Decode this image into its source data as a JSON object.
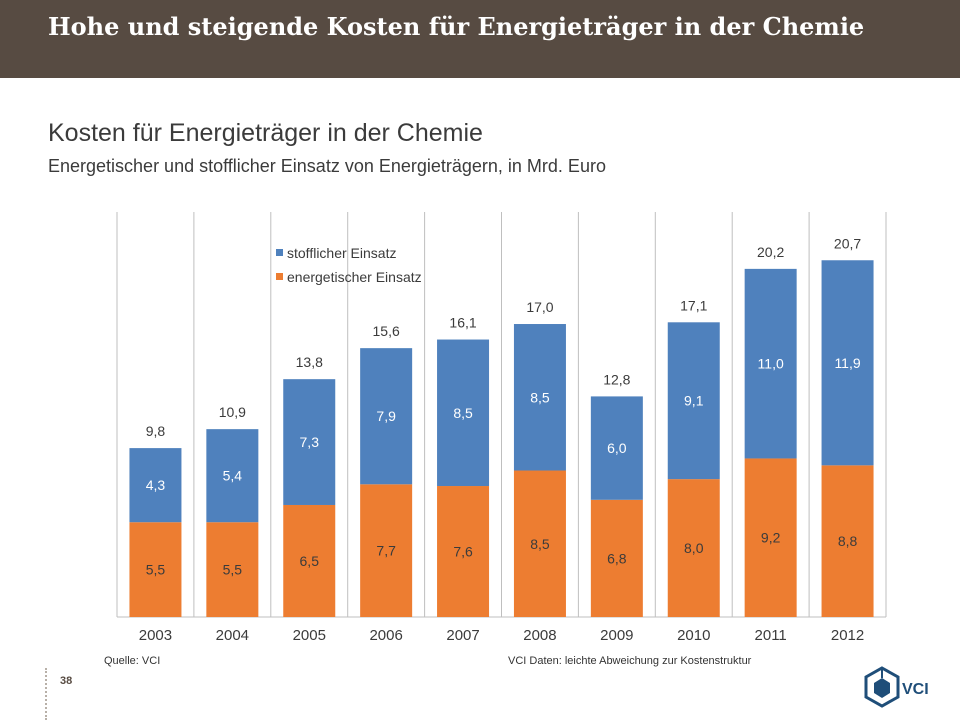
{
  "header": {
    "title": "Hohe und steigende Kosten für Energieträger in der Chemie"
  },
  "chart_data": {
    "type": "bar",
    "stacked": true,
    "title": "Kosten für Energieträger in der Chemie",
    "subtitle": "Energetischer und stofflicher Einsatz von Energieträgern, in Mrd. Euro",
    "categories": [
      "2003",
      "2004",
      "2005",
      "2006",
      "2007",
      "2008",
      "2009",
      "2010",
      "2011",
      "2012"
    ],
    "series": [
      {
        "name": "energetischer Einsatz",
        "color": "#ed7d31",
        "values": [
          5.5,
          5.5,
          6.5,
          7.7,
          7.6,
          8.5,
          6.8,
          8.0,
          9.2,
          8.8
        ],
        "labels": [
          "5,5",
          "5,5",
          "6,5",
          "7,7",
          "7,6",
          "8,5",
          "6,8",
          "8,0",
          "9,2",
          "8,8"
        ]
      },
      {
        "name": "stofflicher Einsatz",
        "color": "#4f81bd",
        "values": [
          4.3,
          5.4,
          7.3,
          7.9,
          8.5,
          8.5,
          6.0,
          9.1,
          11.0,
          11.9
        ],
        "labels": [
          "4,3",
          "5,4",
          "7,3",
          "7,9",
          "8,5",
          "8,5",
          "6,0",
          "9,1",
          "11,0",
          "11,9"
        ]
      }
    ],
    "totals": [
      9.8,
      10.9,
      13.8,
      15.6,
      16.1,
      17.0,
      12.8,
      17.1,
      20.2,
      20.7
    ],
    "total_labels": [
      "9,8",
      "10,9",
      "13,8",
      "15,6",
      "16,1",
      "17,0",
      "12,8",
      "17,1",
      "20,2",
      "20,7"
    ],
    "ylim": [
      0,
      23.5
    ],
    "legend": [
      "stofflicher Einsatz",
      "energetischer Einsatz"
    ],
    "legend_position": "top-left",
    "grid": "vertical separators"
  },
  "footer": {
    "source_left": "Quelle: VCI",
    "source_right": "VCI Daten: leichte Abweichung zur Kostenstruktur",
    "page_number": "38",
    "logo_text": "VCI"
  }
}
